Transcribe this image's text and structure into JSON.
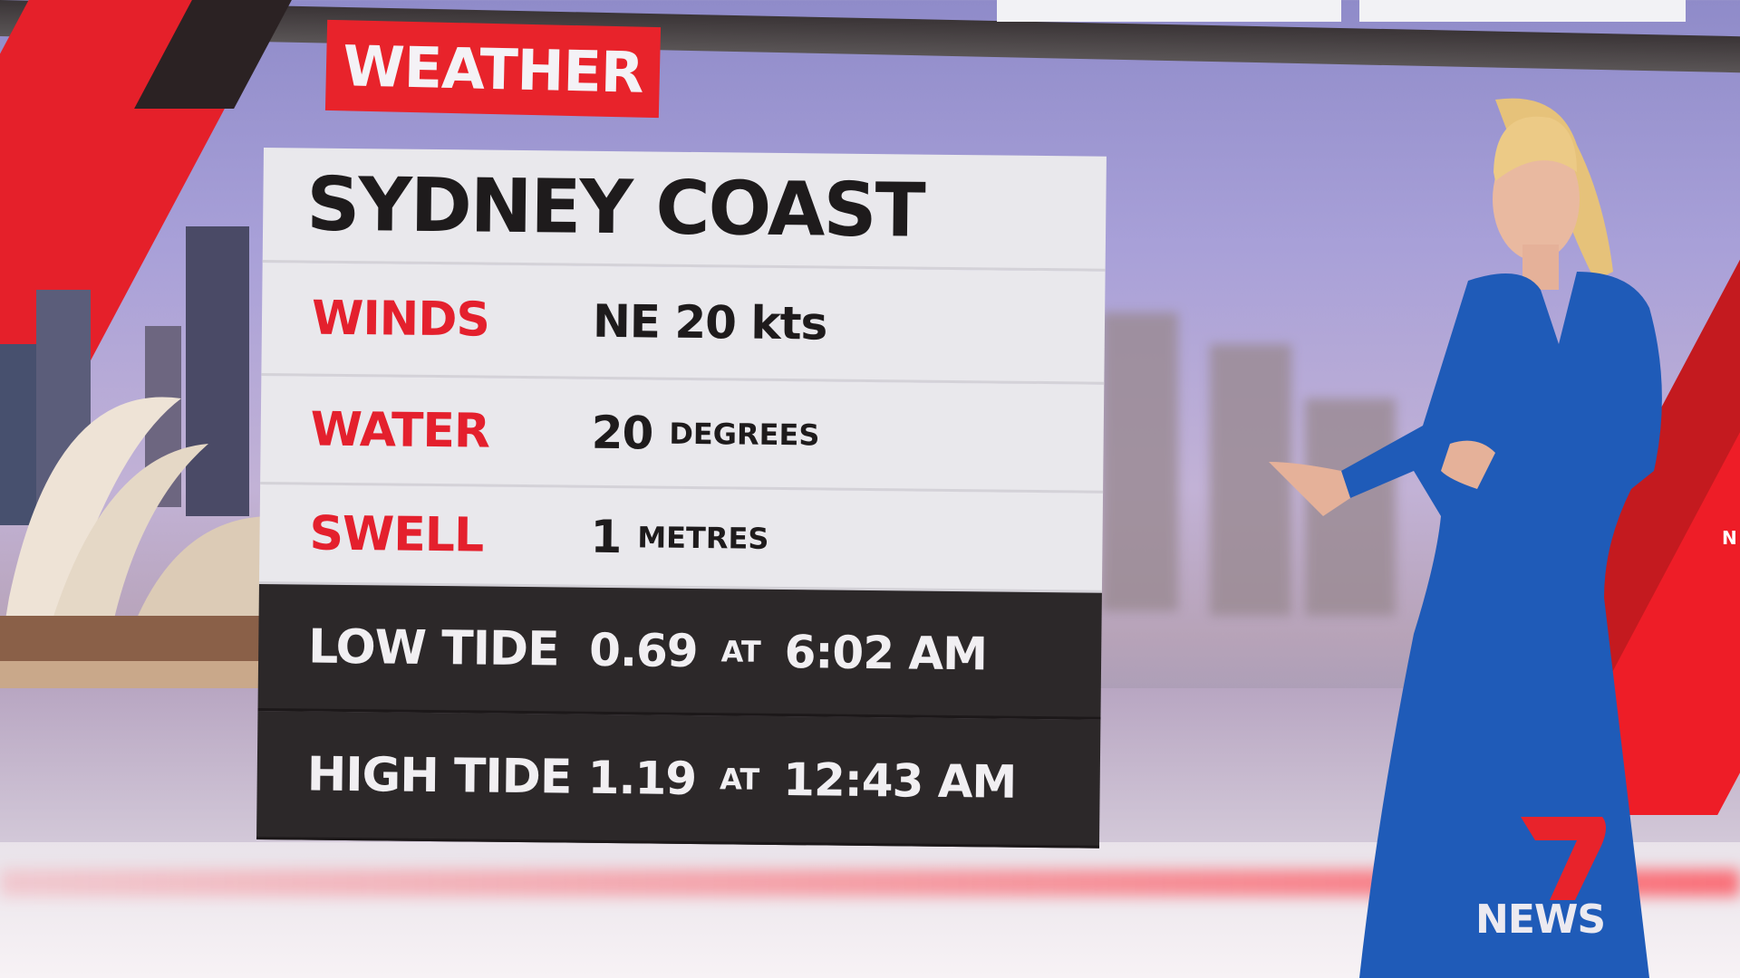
{
  "badge": {
    "label": "WEATHER"
  },
  "panel": {
    "title": "SYDNEY COAST",
    "rows": [
      {
        "label": "WINDS",
        "value": "NE 20 kts",
        "unit": ""
      },
      {
        "label": "WATER",
        "value": "20",
        "unit": "DEGREES"
      },
      {
        "label": "SWELL",
        "value": "1",
        "unit": "METRES"
      }
    ],
    "tides": [
      {
        "label": "LOW TIDE",
        "height": "0.69",
        "at": "AT",
        "time": "6:02 AM"
      },
      {
        "label": "HIGH TIDE",
        "height": "1.19",
        "at": "AT",
        "time": "12:43 AM"
      }
    ]
  },
  "logo": {
    "text": "NEWS",
    "numeral": "7"
  },
  "background_text": {
    "edge": "N"
  },
  "colors": {
    "accent_red": "#e8232b",
    "dress_blue": "#1f5bb8",
    "panel_dark": "#2c2829"
  }
}
